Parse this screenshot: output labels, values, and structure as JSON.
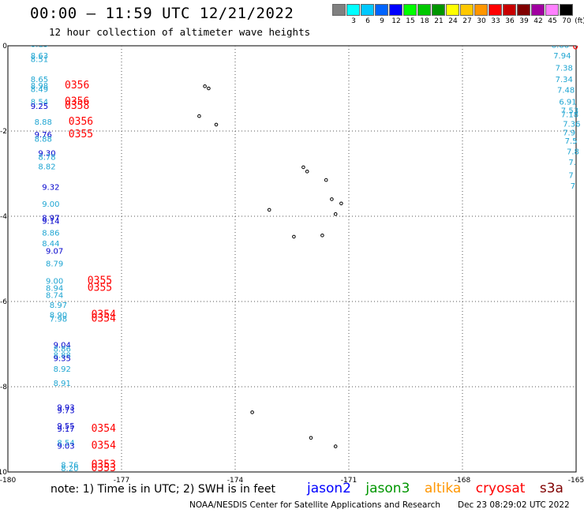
{
  "header": {
    "title": "00:00 – 11:59 UTC 12/21/2022",
    "subtitle": "12 hour collection of altimeter wave heights"
  },
  "color_scale": {
    "unit": "(ft)",
    "steps": [
      {
        "label": "",
        "color": "#808080"
      },
      {
        "label": "3",
        "color": "#00ffff"
      },
      {
        "label": "6",
        "color": "#00c8ff"
      },
      {
        "label": "9",
        "color": "#0064ff"
      },
      {
        "label": "12",
        "color": "#0000ff"
      },
      {
        "label": "15",
        "color": "#00ff00"
      },
      {
        "label": "18",
        "color": "#00c800"
      },
      {
        "label": "21",
        "color": "#009600"
      },
      {
        "label": "24",
        "color": "#ffff00"
      },
      {
        "label": "27",
        "color": "#ffc800"
      },
      {
        "label": "30",
        "color": "#ff9600"
      },
      {
        "label": "33",
        "color": "#ff0000"
      },
      {
        "label": "36",
        "color": "#c80000"
      },
      {
        "label": "39",
        "color": "#800000"
      },
      {
        "label": "42",
        "color": "#a000a0"
      },
      {
        "label": "45",
        "color": "#ff80ff"
      },
      {
        "label": "70",
        "color": "#000000"
      }
    ]
  },
  "map": {
    "lon_range": [
      -180,
      -165
    ],
    "lat_range": [
      -10,
      0
    ],
    "x_ticks": [
      "-180",
      "-177",
      "-174",
      "-171",
      "-168",
      "-165"
    ],
    "y_ticks": [
      "0",
      "-2",
      "-4",
      "-6",
      "-8",
      "-10"
    ]
  },
  "colors": {
    "cyan": "#1ea5d2",
    "blue": "#0000cc",
    "red": "#ff0000",
    "jason2": "#0000ff",
    "jason3": "#009600",
    "altika": "#ff9600",
    "cryosat": "#ff0000",
    "s3a": "#800000"
  },
  "observations": [
    {
      "lon": -179.4,
      "lat": -0.03,
      "value": "8.13",
      "color": "cyan"
    },
    {
      "lon": -179.4,
      "lat": -0.3,
      "value": "8.63",
      "color": "cyan"
    },
    {
      "lon": -179.4,
      "lat": -0.38,
      "value": "8.51",
      "color": "cyan"
    },
    {
      "lon": -179.4,
      "lat": -0.85,
      "value": "8.65",
      "color": "cyan"
    },
    {
      "lon": -179.4,
      "lat": -1.0,
      "value": "8.98",
      "color": "cyan"
    },
    {
      "lon": -179.4,
      "lat": -1.08,
      "value": "8.49",
      "color": "cyan"
    },
    {
      "lon": -179.4,
      "lat": -1.38,
      "value": "8.54",
      "color": "cyan"
    },
    {
      "lon": -179.4,
      "lat": -1.48,
      "value": "9.25",
      "color": "blue"
    },
    {
      "lon": -179.3,
      "lat": -1.85,
      "value": "8.88",
      "color": "cyan"
    },
    {
      "lon": -179.3,
      "lat": -2.15,
      "value": "9.76",
      "color": "blue"
    },
    {
      "lon": -179.3,
      "lat": -2.25,
      "value": "8.88",
      "color": "cyan"
    },
    {
      "lon": -179.2,
      "lat": -2.58,
      "value": "9.30",
      "color": "blue"
    },
    {
      "lon": -179.2,
      "lat": -2.68,
      "value": "8.78",
      "color": "cyan"
    },
    {
      "lon": -179.2,
      "lat": -2.9,
      "value": "8.82",
      "color": "cyan"
    },
    {
      "lon": -179.1,
      "lat": -3.38,
      "value": "9.32",
      "color": "blue"
    },
    {
      "lon": -179.1,
      "lat": -3.78,
      "value": "9.00",
      "color": "cyan"
    },
    {
      "lon": -179.1,
      "lat": -4.1,
      "value": "8.97",
      "color": "blue"
    },
    {
      "lon": -179.1,
      "lat": -4.18,
      "value": "9.14",
      "color": "blue"
    },
    {
      "lon": -179.1,
      "lat": -4.45,
      "value": "8.86",
      "color": "cyan"
    },
    {
      "lon": -179.1,
      "lat": -4.7,
      "value": "8.44",
      "color": "cyan"
    },
    {
      "lon": -179.0,
      "lat": -4.88,
      "value": "9.07",
      "color": "blue"
    },
    {
      "lon": -179.0,
      "lat": -5.18,
      "value": "8.79",
      "color": "cyan"
    },
    {
      "lon": -179.0,
      "lat": -5.58,
      "value": "9.00",
      "color": "cyan"
    },
    {
      "lon": -179.0,
      "lat": -5.75,
      "value": "8.94",
      "color": "cyan"
    },
    {
      "lon": -179.0,
      "lat": -5.92,
      "value": "8.74",
      "color": "cyan"
    },
    {
      "lon": -178.9,
      "lat": -6.15,
      "value": "8.97",
      "color": "cyan"
    },
    {
      "lon": -178.9,
      "lat": -6.38,
      "value": "8.90",
      "color": "cyan"
    },
    {
      "lon": -178.9,
      "lat": -6.47,
      "value": "7.98",
      "color": "cyan"
    },
    {
      "lon": -178.8,
      "lat": -7.08,
      "value": "9.04",
      "color": "blue"
    },
    {
      "lon": -178.8,
      "lat": -7.18,
      "value": "8.86",
      "color": "cyan"
    },
    {
      "lon": -178.8,
      "lat": -7.32,
      "value": "8.88",
      "color": "cyan"
    },
    {
      "lon": -178.8,
      "lat": -7.4,
      "value": "9.35",
      "color": "blue"
    },
    {
      "lon": -178.8,
      "lat": -7.65,
      "value": "8.92",
      "color": "cyan"
    },
    {
      "lon": -178.8,
      "lat": -7.98,
      "value": "8.91",
      "color": "cyan"
    },
    {
      "lon": -178.7,
      "lat": -8.55,
      "value": "9.93",
      "color": "blue"
    },
    {
      "lon": -178.7,
      "lat": -8.62,
      "value": "9.73",
      "color": "blue"
    },
    {
      "lon": -178.7,
      "lat": -8.98,
      "value": "9.55",
      "color": "blue"
    },
    {
      "lon": -178.7,
      "lat": -9.06,
      "value": "9.17",
      "color": "blue"
    },
    {
      "lon": -178.7,
      "lat": -9.38,
      "value": "8.54",
      "color": "cyan"
    },
    {
      "lon": -178.7,
      "lat": -9.45,
      "value": "9.03",
      "color": "blue"
    },
    {
      "lon": -178.6,
      "lat": -9.9,
      "value": "8.76",
      "color": "cyan"
    },
    {
      "lon": -178.6,
      "lat": -9.98,
      "value": "8.20",
      "color": "cyan"
    },
    {
      "lon": -178.5,
      "lat": -1.0,
      "value": "0356",
      "color": "red"
    },
    {
      "lon": -178.5,
      "lat": -1.38,
      "value": "0356",
      "color": "red"
    },
    {
      "lon": -178.5,
      "lat": -1.48,
      "value": "0358",
      "color": "red"
    },
    {
      "lon": -178.4,
      "lat": -1.85,
      "value": "0356",
      "color": "red"
    },
    {
      "lon": -178.4,
      "lat": -2.15,
      "value": "0355",
      "color": "red"
    },
    {
      "lon": -177.9,
      "lat": -5.58,
      "value": "0355",
      "color": "red"
    },
    {
      "lon": -177.9,
      "lat": -5.75,
      "value": "0355",
      "color": "red"
    },
    {
      "lon": -177.8,
      "lat": -6.38,
      "value": "0354",
      "color": "red"
    },
    {
      "lon": -177.8,
      "lat": -6.47,
      "value": "0354",
      "color": "red"
    },
    {
      "lon": -177.8,
      "lat": -9.06,
      "value": "0354",
      "color": "red"
    },
    {
      "lon": -177.8,
      "lat": -9.45,
      "value": "0354",
      "color": "red"
    },
    {
      "lon": -177.8,
      "lat": -9.9,
      "value": "0353",
      "color": "red"
    },
    {
      "lon": -177.8,
      "lat": -9.98,
      "value": "0353",
      "color": "red"
    },
    {
      "lon": -165.65,
      "lat": -0.05,
      "value": "8.88",
      "color": "cyan"
    },
    {
      "lon": -165.6,
      "lat": -0.3,
      "value": "7.94",
      "color": "cyan"
    },
    {
      "lon": -165.55,
      "lat": -0.58,
      "value": "7.38",
      "color": "cyan"
    },
    {
      "lon": -165.55,
      "lat": -0.85,
      "value": "7.34",
      "color": "cyan"
    },
    {
      "lon": -165.5,
      "lat": -1.1,
      "value": "7.48",
      "color": "cyan"
    },
    {
      "lon": -165.45,
      "lat": -1.38,
      "value": "6.91",
      "color": "cyan"
    },
    {
      "lon": -165.4,
      "lat": -1.58,
      "value": "7.53",
      "color": "cyan"
    },
    {
      "lon": -165.4,
      "lat": -1.68,
      "value": "7.18",
      "color": "cyan"
    },
    {
      "lon": -165.35,
      "lat": -1.9,
      "value": "7.36",
      "color": "cyan"
    },
    {
      "lon": -165.35,
      "lat": -2.1,
      "value": "7.9",
      "color": "cyan"
    },
    {
      "lon": -165.3,
      "lat": -2.3,
      "value": "7.5",
      "color": "cyan"
    },
    {
      "lon": -165.25,
      "lat": -2.55,
      "value": "7.8",
      "color": "cyan"
    },
    {
      "lon": -165.2,
      "lat": -2.8,
      "value": "7.",
      "color": "cyan"
    },
    {
      "lon": -165.2,
      "lat": -3.1,
      "value": "7",
      "color": "cyan"
    },
    {
      "lon": -165.15,
      "lat": -3.35,
      "value": "7",
      "color": "cyan"
    },
    {
      "lon": -165.1,
      "lat": -0.08,
      "value": "0",
      "color": "red"
    }
  ],
  "islands": [
    {
      "lon": -174.8,
      "lat": -0.95
    },
    {
      "lon": -174.7,
      "lat": -1.0
    },
    {
      "lon": -174.95,
      "lat": -1.65
    },
    {
      "lon": -174.5,
      "lat": -1.85
    },
    {
      "lon": -172.2,
      "lat": -2.85
    },
    {
      "lon": -172.1,
      "lat": -2.95
    },
    {
      "lon": -171.6,
      "lat": -3.15
    },
    {
      "lon": -171.2,
      "lat": -3.7
    },
    {
      "lon": -171.45,
      "lat": -3.6
    },
    {
      "lon": -173.1,
      "lat": -3.85
    },
    {
      "lon": -171.7,
      "lat": -4.45
    },
    {
      "lon": -172.45,
      "lat": -4.48
    },
    {
      "lon": -173.55,
      "lat": -8.6
    },
    {
      "lon": -172.0,
      "lat": -9.2
    },
    {
      "lon": -171.35,
      "lat": -9.4
    },
    {
      "lon": -171.35,
      "lat": -3.95
    }
  ],
  "footer": {
    "note": "note:  1) Time is in UTC;  2) SWH is in feet",
    "legend": [
      "jason2",
      "jason3",
      "altika",
      "cryosat",
      "s3a"
    ],
    "credit": "NOAA/NESDIS Center for Satellite Applications and Research",
    "timestamp": "Dec 23 08:29:02 UTC 2022"
  }
}
